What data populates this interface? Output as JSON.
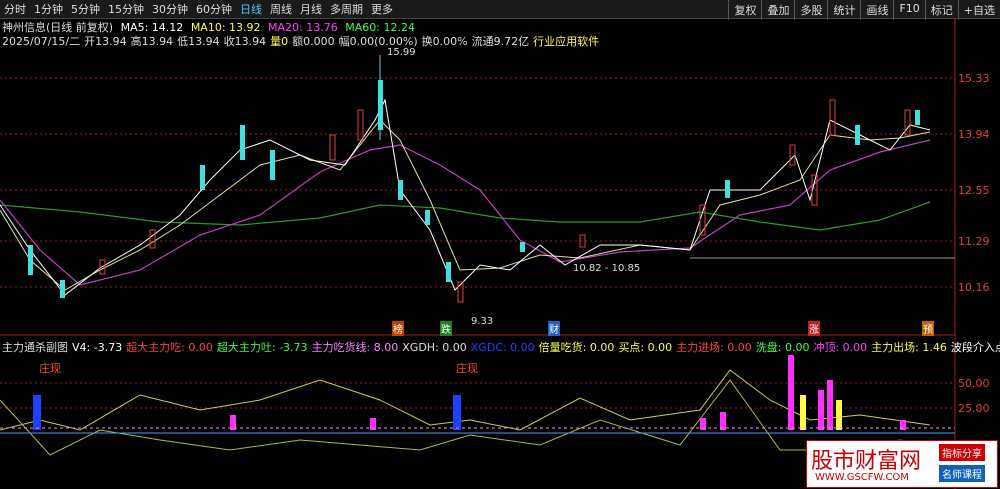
{
  "toolbar": {
    "tabs": [
      "分时",
      "1分钟",
      "5分钟",
      "15分钟",
      "30分钟",
      "60分钟",
      "日线",
      "周线",
      "月线",
      "多周期",
      "更多"
    ],
    "right": [
      "复权",
      "叠加",
      "多股",
      "统计",
      "画线",
      "F10",
      "标记",
      "+自选"
    ]
  },
  "header": {
    "name": "神州信息(日线 前复权)",
    "ma": [
      "MA5: 14.12",
      "MA10: 13.92",
      "MA20: 13.76",
      "MA60: 12.24"
    ],
    "info": [
      "2025/07/15/二",
      "开13.94",
      "高13.94",
      "低13.94",
      "收13.94",
      "量0",
      "额0.000",
      "幅0.00(0.00%)",
      "换0.00%",
      "流通9.72亿",
      "行业应用软件"
    ]
  },
  "price_axis": [
    "15.33",
    "13.94",
    "12.55",
    "11.29",
    "10.16"
  ],
  "annotations": {
    "high": "15.99",
    "low": "9.33",
    "range": "10.82 - 10.85"
  },
  "events": [
    "榜",
    "跌",
    "财",
    "涨",
    "预"
  ],
  "sub": {
    "items": [
      "主力通杀副图",
      "V4: -3.73",
      "超大主力吃: 0.00",
      "超大主力吐: -3.73",
      "主力吃货线: 8.00",
      "XGDH: 0.00",
      "XGDC: 0.00",
      "倍量吃货: 0.00",
      "买点: 0.00",
      "主力进场: 0.00",
      "洗盘: 0.00",
      "冲顶: 0.00",
      "主力出场: 1.46",
      "波段介入点:"
    ],
    "axis": [
      "50.00",
      "25.00"
    ],
    "signal": "庄现"
  },
  "watermark": {
    "title": "股市财富网",
    "url": "WWW.GSCFW.COM",
    "btn1": "指标分享",
    "btn2": "名师课程"
  }
}
